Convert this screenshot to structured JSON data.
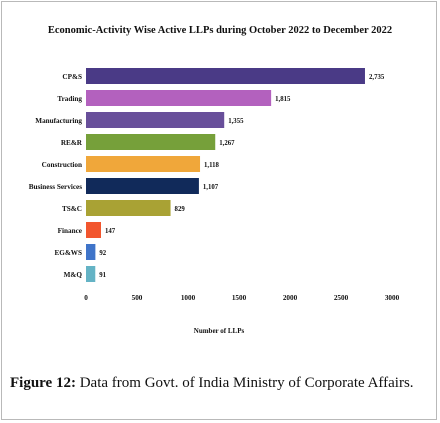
{
  "chart_data": {
    "type": "bar",
    "orientation": "horizontal",
    "title": "Economic-Activity Wise Active LLPs during October 2022 to December 2022",
    "xlabel": "Number of LLPs",
    "ylabel": "",
    "xlim": [
      0,
      3000
    ],
    "xticks": [
      0,
      500,
      1000,
      1500,
      2000,
      2500,
      3000
    ],
    "grid": false,
    "categories": [
      "CP&S",
      "Trading",
      "Manufacturing",
      "RE&R",
      "Construction",
      "Business Services",
      "TS&C",
      "Finance",
      "EG&WS",
      "M&Q"
    ],
    "values": [
      2735,
      1815,
      1355,
      1267,
      1118,
      1107,
      829,
      147,
      92,
      91
    ],
    "value_labels": [
      "2,735",
      "1,815",
      "1,355",
      "1,267",
      "1,118",
      "1,107",
      "829",
      "147",
      "92",
      "91"
    ],
    "colors": [
      "#4a3a86",
      "#b361be",
      "#684f9a",
      "#76a03a",
      "#f0a73a",
      "#112a5a",
      "#a9a234",
      "#f2562e",
      "#3f74c9",
      "#64b3c5"
    ]
  },
  "caption": {
    "label": "Figure 12:",
    "text": " Data from Govt. of India Ministry of Corporate Affairs."
  }
}
